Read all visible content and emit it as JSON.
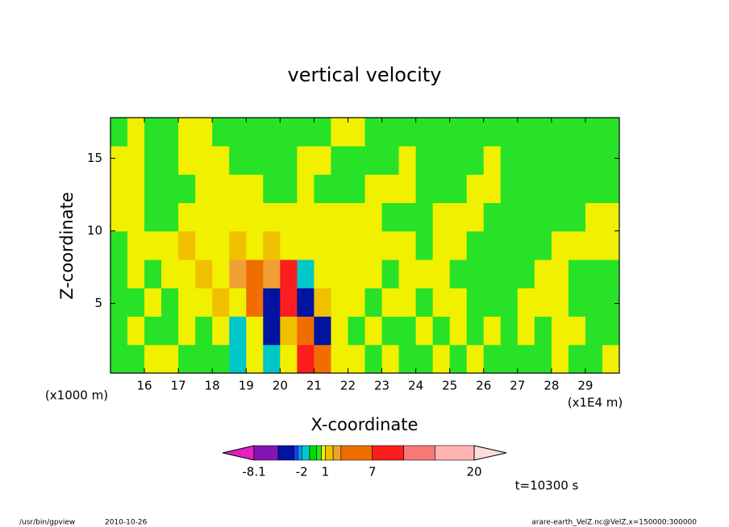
{
  "chart_data": {
    "type": "contour",
    "title": "vertical velocity",
    "xlabel": "X-coordinate",
    "ylabel": "Z-coordinate",
    "xunit": "(x1E4 m)",
    "yunit": "(x1000 m)",
    "xlim": [
      15,
      30
    ],
    "ylim": [
      0.2,
      17.8
    ],
    "xticks": [
      16,
      17,
      18,
      19,
      20,
      21,
      22,
      23,
      24,
      25,
      26,
      27,
      28,
      29
    ],
    "yticks": [
      5,
      10,
      15
    ],
    "x": [
      15.25,
      15.75,
      16.25,
      16.75,
      17.25,
      17.75,
      18.25,
      18.75,
      19.25,
      19.75,
      20.25,
      20.75,
      21.25,
      21.75,
      22.25,
      22.75,
      23.25,
      23.75,
      24.25,
      24.75,
      25.25,
      25.75,
      26.25,
      26.75,
      27.25,
      27.75,
      28.25,
      28.75,
      29.25,
      29.75
    ],
    "y": [
      1.18,
      3.13,
      5.09,
      7.04,
      9.0,
      10.96,
      12.91,
      14.87,
      16.82
    ],
    "values": [
      [
        0.2,
        0.2,
        0.7,
        0.7,
        0.2,
        0.2,
        0.2,
        -1.5,
        0.7,
        -1.5,
        0.7,
        9,
        5,
        0.7,
        0.7,
        0.2,
        0.7,
        0.2,
        0.2,
        0.7,
        0.2,
        0.7,
        0.2,
        0.2,
        0.2,
        0.2,
        0.7,
        0.2,
        0.2,
        0.7
      ],
      [
        0.2,
        0.7,
        0.2,
        0.2,
        0.7,
        0.2,
        0.7,
        -1.5,
        0.7,
        -4,
        1.5,
        5,
        -4,
        0.7,
        0.2,
        0.7,
        0.2,
        0.2,
        0.7,
        0.2,
        0.7,
        0.2,
        0.7,
        0.2,
        0.7,
        0.2,
        0.7,
        0.7,
        0.2,
        0.2
      ],
      [
        0.2,
        0.2,
        0.7,
        0.2,
        0.7,
        0.7,
        1.5,
        0.7,
        5,
        -4,
        9,
        -4,
        1.5,
        0.7,
        0.7,
        0.2,
        0.7,
        0.7,
        0.2,
        0.7,
        0.7,
        0.2,
        0.2,
        0.2,
        0.7,
        0.7,
        0.7,
        0.2,
        0.2,
        0.2
      ],
      [
        0.2,
        0.7,
        0.2,
        0.7,
        0.7,
        1.5,
        0.7,
        2.5,
        5,
        2.5,
        9,
        -1.5,
        0.7,
        0.7,
        0.7,
        0.7,
        0.2,
        0.7,
        0.7,
        0.7,
        0.2,
        0.2,
        0.2,
        0.2,
        0.2,
        0.7,
        0.7,
        0.2,
        0.2,
        0.2
      ],
      [
        0.2,
        0.7,
        0.7,
        0.7,
        1.5,
        0.7,
        0.7,
        1.5,
        0.7,
        1.5,
        0.7,
        0.7,
        0.7,
        0.7,
        0.7,
        0.7,
        0.7,
        0.7,
        0.2,
        0.7,
        0.7,
        0.2,
        0.2,
        0.2,
        0.2,
        0.2,
        0.7,
        0.7,
        0.7,
        0.7
      ],
      [
        0.7,
        0.7,
        0.2,
        0.2,
        0.7,
        0.7,
        0.7,
        0.7,
        0.7,
        0.7,
        0.7,
        0.7,
        0.7,
        0.7,
        0.7,
        0.7,
        0.2,
        0.2,
        0.2,
        0.7,
        0.7,
        0.7,
        0.2,
        0.2,
        0.2,
        0.2,
        0.2,
        0.2,
        0.7,
        0.7
      ],
      [
        0.7,
        0.7,
        0.2,
        0.2,
        0.2,
        0.7,
        0.7,
        0.7,
        0.7,
        0.2,
        0.2,
        0.7,
        0.2,
        0.2,
        0.2,
        0.7,
        0.7,
        0.7,
        0.2,
        0.2,
        0.2,
        0.7,
        0.7,
        0.2,
        0.2,
        0.2,
        0.2,
        0.2,
        0.2,
        0.2
      ],
      [
        0.7,
        0.7,
        0.2,
        0.2,
        0.7,
        0.7,
        0.7,
        0.2,
        0.2,
        0.2,
        0.2,
        0.7,
        0.7,
        0.2,
        0.2,
        0.2,
        0.2,
        0.7,
        0.2,
        0.2,
        0.2,
        0.2,
        0.7,
        0.2,
        0.2,
        0.2,
        0.2,
        0.2,
        0.2,
        0.2
      ],
      [
        0.2,
        0.7,
        0.2,
        0.2,
        0.7,
        0.7,
        0.2,
        0.2,
        0.2,
        0.2,
        0.2,
        0.2,
        0.2,
        0.7,
        0.7,
        0.2,
        0.2,
        0.2,
        0.2,
        0.2,
        0.2,
        0.2,
        0.2,
        0.2,
        0.2,
        0.2,
        0.2,
        0.2,
        0.2,
        0.2
      ]
    ],
    "colorbar": {
      "levels": [
        -8.1,
        -5,
        -3,
        -2.5,
        -2,
        -1,
        -0.1,
        0.5,
        1,
        2,
        3,
        7,
        11,
        15,
        20
      ],
      "colors": [
        "#e020c0",
        "#8214b4",
        "#0014a0",
        "#1e3cff",
        "#0096ff",
        "#00c8c8",
        "#00dc00",
        "#28e228",
        "#f0f000",
        "#f0c000",
        "#f0a032",
        "#f06e00",
        "#fa1e1e",
        "#fa7878",
        "#ffb4b4",
        "#ffdcdc"
      ],
      "ticks": [
        -8.1,
        -2,
        1,
        7,
        20
      ]
    },
    "annotation": "t=10300 s",
    "footer_left": "/usr/bin/gpview",
    "footer_date": "2010-10-26",
    "footer_right": "arare-earth_VelZ.nc@VelZ,x=150000:300000"
  }
}
